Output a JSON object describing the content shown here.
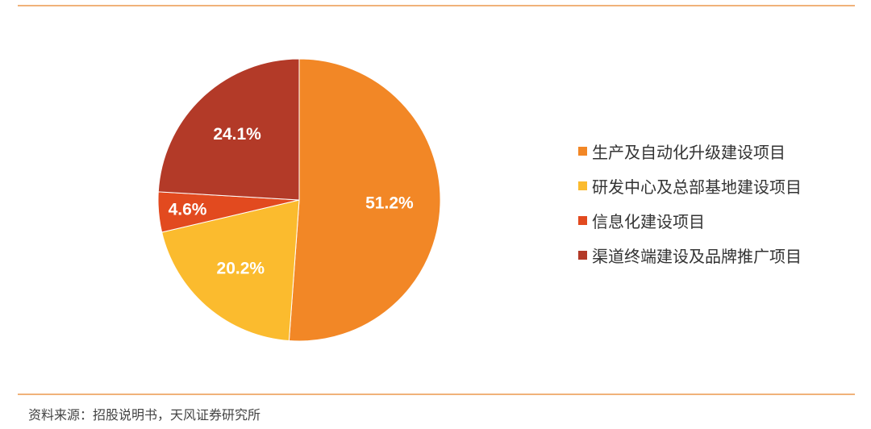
{
  "chart_data": {
    "type": "pie",
    "slices": [
      {
        "label": "生产及自动化升级建设项目",
        "value": 51.2,
        "value_label": "51.2%",
        "color": "#f28726"
      },
      {
        "label": "研发中心及总部基地建设项目",
        "value": 20.2,
        "value_label": "20.2%",
        "color": "#fbbb2e"
      },
      {
        "label": "信息化建设项目",
        "value": 4.6,
        "value_label": "4.6%",
        "color": "#e24a1f"
      },
      {
        "label": "渠道终端建设及品牌推广项目",
        "value": 24.1,
        "value_label": "24.1%",
        "color": "#b33a28"
      }
    ],
    "legend_position": "right",
    "start_angle_deg": 0,
    "direction": "clockwise"
  },
  "source": "资料来源：招股说明书，天风证券研究所"
}
